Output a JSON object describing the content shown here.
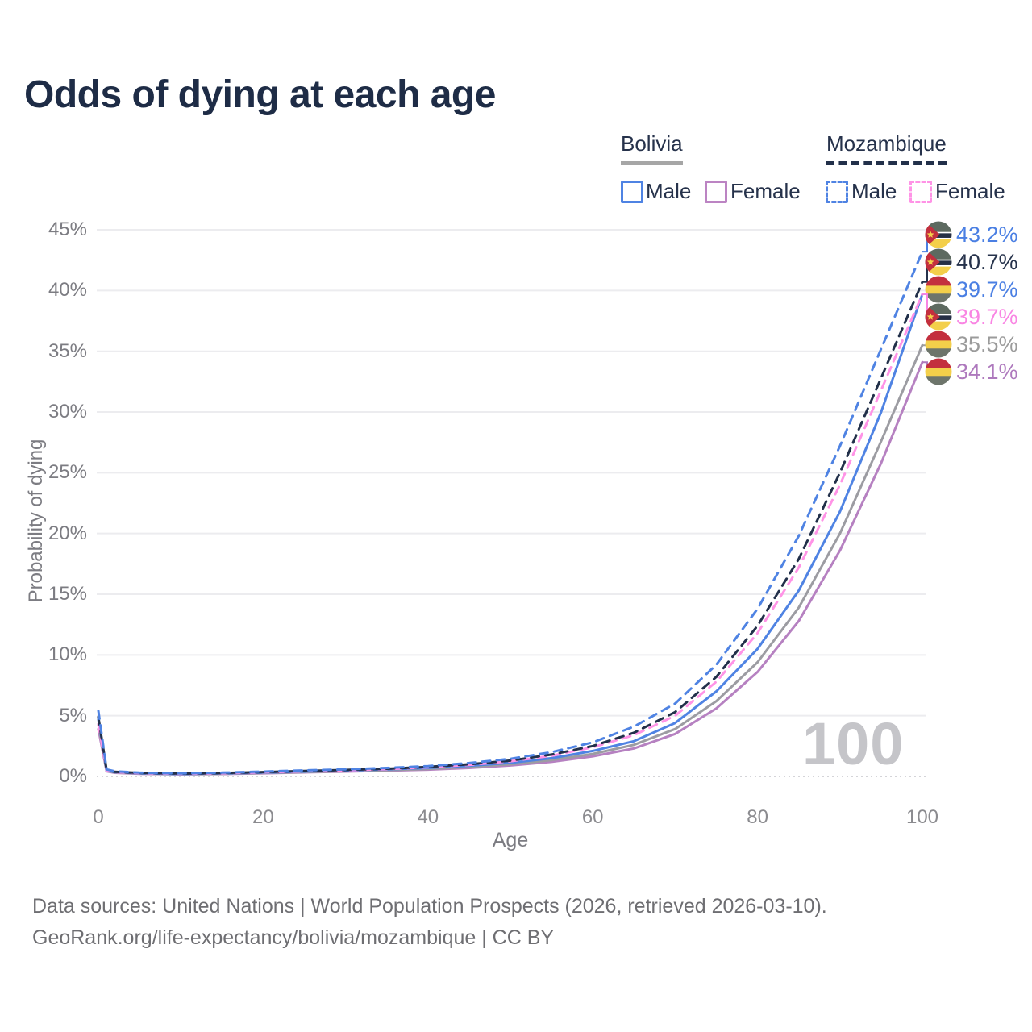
{
  "title": "Odds of dying at each age",
  "legend": {
    "bolivia": {
      "header": "Bolivia",
      "male": "Male",
      "female": "Female"
    },
    "mozambique": {
      "header": "Mozambique",
      "male": "Male",
      "female": "Female"
    }
  },
  "colors": {
    "male_blue": "#4f83e3",
    "bolivia_female_purple": "#bc84c3",
    "mozambique_female_pink": "#ff93e6",
    "mozambique_all_navy": "#22304a",
    "bolivia_all_gray": "#9c9ca2",
    "gridline": "#ececef",
    "baseline_dotted": "#d4d4d8",
    "text_navy": "#26324b",
    "tick_gray": "#7c7c82"
  },
  "chart_data": {
    "type": "line",
    "title": "Odds of dying at each age",
    "xlabel": "Age",
    "ylabel": "Probability of dying",
    "xlim": [
      0,
      100
    ],
    "ylim": [
      0,
      45
    ],
    "grid": "horizontal",
    "watermark": "100",
    "x_ticks": [
      {
        "age": 0,
        "label": "0"
      },
      {
        "age": 20,
        "label": "20"
      },
      {
        "age": 40,
        "label": "40"
      },
      {
        "age": 60,
        "label": "60"
      },
      {
        "age": 80,
        "label": "80"
      },
      {
        "age": 100,
        "label": "100"
      }
    ],
    "y_ticks": [
      {
        "pct": 0,
        "label": "0%"
      },
      {
        "pct": 5,
        "label": "5%"
      },
      {
        "pct": 10,
        "label": "10%"
      },
      {
        "pct": 15,
        "label": "15%"
      },
      {
        "pct": 20,
        "label": "20%"
      },
      {
        "pct": 25,
        "label": "25%"
      },
      {
        "pct": 30,
        "label": "30%"
      },
      {
        "pct": 35,
        "label": "35%"
      },
      {
        "pct": 40,
        "label": "40%"
      },
      {
        "pct": 45,
        "label": "45%"
      }
    ],
    "ages": [
      0,
      1,
      2,
      5,
      10,
      15,
      20,
      25,
      30,
      35,
      40,
      45,
      50,
      55,
      60,
      65,
      70,
      75,
      80,
      85,
      90,
      95,
      100
    ],
    "series": [
      {
        "id": "bolivia-female",
        "name": "Bolivia Female",
        "country": "bolivia",
        "sex": "female",
        "style": "solid",
        "color": "#b681c1",
        "values": [
          3.9,
          0.42,
          0.3,
          0.22,
          0.17,
          0.2,
          0.26,
          0.33,
          0.4,
          0.47,
          0.56,
          0.7,
          0.9,
          1.2,
          1.65,
          2.3,
          3.5,
          5.6,
          8.6,
          12.8,
          18.6,
          25.8,
          34.1
        ]
      },
      {
        "id": "bolivia-all",
        "name": "Bolivia",
        "country": "bolivia",
        "sex": "all",
        "style": "solid",
        "color": "#9c9ca2",
        "values": [
          4.3,
          0.46,
          0.33,
          0.24,
          0.18,
          0.22,
          0.29,
          0.36,
          0.43,
          0.52,
          0.62,
          0.78,
          1.0,
          1.35,
          1.85,
          2.6,
          3.9,
          6.2,
          9.4,
          13.9,
          20.0,
          27.6,
          35.5
        ]
      },
      {
        "id": "bolivia-male",
        "name": "Bolivia Male",
        "country": "bolivia",
        "sex": "male",
        "style": "solid",
        "color": "#4f83e3",
        "values": [
          4.7,
          0.5,
          0.36,
          0.26,
          0.2,
          0.25,
          0.32,
          0.4,
          0.48,
          0.58,
          0.7,
          0.88,
          1.12,
          1.5,
          2.1,
          2.9,
          4.4,
          7.0,
          10.5,
          15.3,
          21.8,
          30.0,
          39.7
        ]
      },
      {
        "id": "mozambique-female",
        "name": "Mozambique Female",
        "country": "mozambique",
        "sex": "female",
        "style": "dashed",
        "color": "#ff93e6",
        "values": [
          4.3,
          0.5,
          0.36,
          0.27,
          0.22,
          0.26,
          0.34,
          0.42,
          0.5,
          0.6,
          0.75,
          0.95,
          1.25,
          1.7,
          2.4,
          3.4,
          5.0,
          7.8,
          11.8,
          17.2,
          24.0,
          31.8,
          39.7
        ]
      },
      {
        "id": "mozambique-all",
        "name": "Mozambique",
        "country": "mozambique",
        "sex": "all",
        "style": "dashed",
        "color": "#22304a",
        "values": [
          4.9,
          0.53,
          0.38,
          0.29,
          0.23,
          0.28,
          0.36,
          0.45,
          0.53,
          0.63,
          0.78,
          1.0,
          1.3,
          1.8,
          2.5,
          3.6,
          5.3,
          8.2,
          12.4,
          17.9,
          25.0,
          32.8,
          40.7
        ]
      },
      {
        "id": "mozambique-male",
        "name": "Mozambique Male",
        "country": "mozambique",
        "sex": "male",
        "style": "dashed",
        "color": "#4f83e3",
        "values": [
          5.4,
          0.58,
          0.42,
          0.31,
          0.25,
          0.31,
          0.4,
          0.5,
          0.58,
          0.7,
          0.85,
          1.1,
          1.45,
          2.0,
          2.8,
          4.1,
          6.0,
          9.2,
          13.8,
          19.8,
          27.2,
          35.2,
          43.2
        ]
      }
    ],
    "end_labels": [
      {
        "flag": "mozambique",
        "series": "Mozambique Male",
        "value": "43.2%",
        "pct": 43.2,
        "color": "#4a7fe3"
      },
      {
        "flag": "mozambique",
        "series": "Mozambique",
        "value": "40.7%",
        "pct": 40.7,
        "color": "#26324b"
      },
      {
        "flag": "bolivia",
        "series": "Bolivia Male",
        "value": "39.7%",
        "pct": 39.7,
        "color": "#4a7fe3"
      },
      {
        "flag": "mozambique",
        "series": "Mozambique Female",
        "value": "39.7%",
        "pct": 39.7,
        "color": "#f985e3"
      },
      {
        "flag": "bolivia",
        "series": "Bolivia",
        "value": "35.5%",
        "pct": 35.5,
        "color": "#9b9b9b"
      },
      {
        "flag": "bolivia",
        "series": "Bolivia Female",
        "value": "34.1%",
        "pct": 34.1,
        "color": "#ae79bd"
      }
    ]
  },
  "footer": {
    "line1": "Data sources: United Nations | World Population Prospects (2026, retrieved 2026-03-10).",
    "line2": "GeoRank.org/life-expectancy/bolivia/mozambique | CC BY"
  }
}
